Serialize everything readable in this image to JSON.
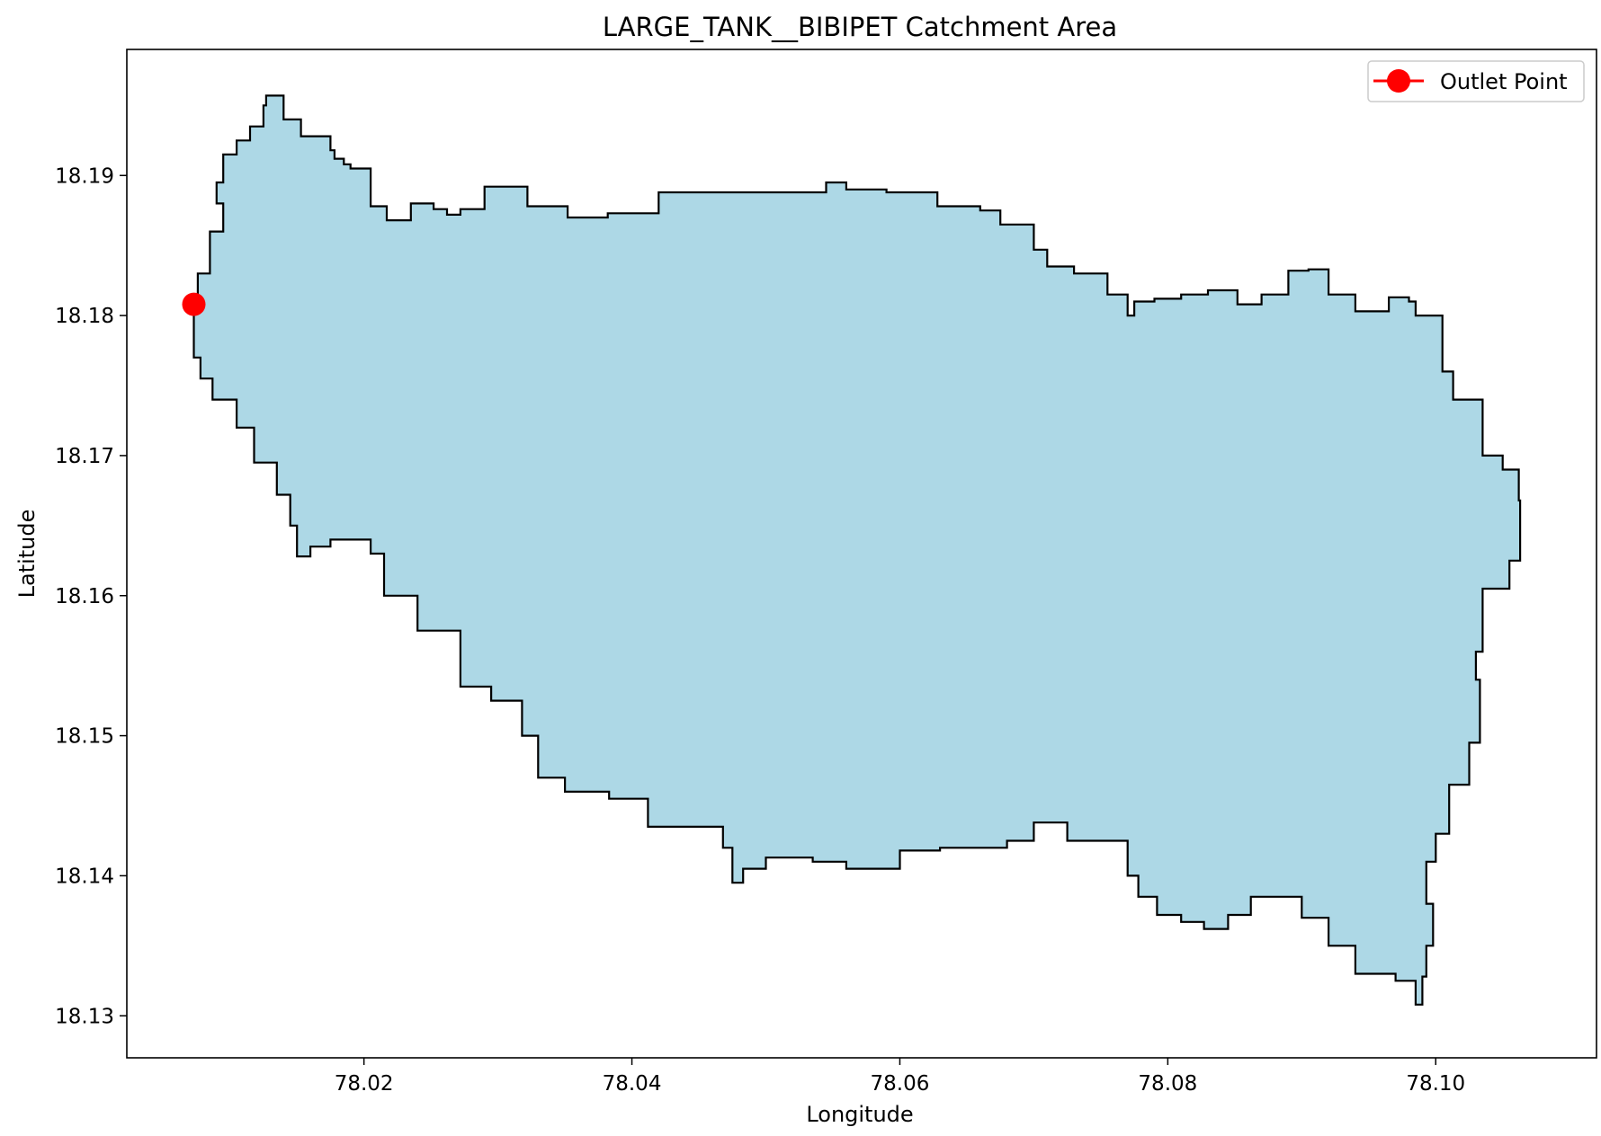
{
  "chart_data": {
    "type": "area",
    "title": "LARGE_TANK__BIBIPET Catchment Area",
    "xlabel": "Longitude",
    "ylabel": "Latitude",
    "xlim": [
      78.0023,
      78.112
    ],
    "ylim": [
      18.127,
      18.199
    ],
    "x_ticks": [
      78.02,
      78.04,
      78.06,
      78.08,
      78.1
    ],
    "x_tick_labels": [
      "78.02",
      "78.04",
      "78.06",
      "78.08",
      "78.10"
    ],
    "y_ticks": [
      18.13,
      18.14,
      18.15,
      18.16,
      18.17,
      18.18,
      18.19
    ],
    "y_tick_labels": [
      "18.13",
      "18.14",
      "18.15",
      "18.16",
      "18.17",
      "18.18",
      "18.19"
    ],
    "grid": false,
    "legend": {
      "position": "top-right",
      "entries": [
        "Outlet Point"
      ]
    },
    "colors": {
      "fill": "#add8e6",
      "outline": "#000000",
      "outlet": "#ff0000"
    },
    "series": [
      {
        "name": "",
        "kind": "polygon",
        "lon": [
          78.0073,
          78.0076,
          78.0085,
          78.0085,
          78.0095,
          78.009,
          78.0095,
          78.0105,
          78.0115,
          78.0125,
          78.0127,
          78.014,
          78.015,
          78.0153,
          78.0175,
          78.0178,
          78.0185,
          78.019,
          78.0205,
          78.0213,
          78.0217,
          78.0235,
          78.0252,
          78.0262,
          78.0272,
          78.029,
          78.0322,
          78.0352,
          78.0382,
          78.042,
          78.0475,
          78.0522,
          78.0545,
          78.056,
          78.059,
          78.0618,
          78.0628,
          78.065,
          78.066,
          78.0675,
          78.07,
          78.071,
          78.073,
          78.0755,
          78.077,
          78.0775,
          78.079,
          78.081,
          78.083,
          78.0852,
          78.087,
          78.089,
          78.0905,
          78.092,
          78.094,
          78.0965,
          78.098,
          78.0985,
          78.1005,
          78.1013,
          78.1035,
          78.105,
          78.1062,
          78.1063,
          78.1055,
          78.1035,
          78.103,
          78.1033,
          78.1025,
          78.101,
          78.1,
          78.0993,
          78.0998,
          78.0993,
          78.099,
          78.0985,
          78.097,
          78.094,
          78.092,
          78.09,
          78.0885,
          78.0862,
          78.0845,
          78.0827,
          78.081,
          78.0792,
          78.0778,
          78.077,
          78.075,
          78.0725,
          78.07,
          78.068,
          78.063,
          78.06,
          78.056,
          78.0535,
          78.05,
          78.0483,
          78.0475,
          78.0468,
          78.045,
          78.0412,
          78.0383,
          78.035,
          78.033,
          78.0318,
          78.0295,
          78.0272,
          78.024,
          78.0215,
          78.0205,
          78.0185,
          78.0175,
          78.016,
          78.015,
          78.0145,
          78.0135,
          78.0118,
          78.0105,
          78.0087,
          78.0078,
          78.0073
        ],
        "lat": [
          18.1808,
          18.183,
          18.184,
          18.186,
          18.188,
          18.1895,
          18.1915,
          18.1925,
          18.1935,
          18.195,
          18.1957,
          18.194,
          18.194,
          18.1928,
          18.1918,
          18.1912,
          18.1908,
          18.1905,
          18.1878,
          18.1878,
          18.1868,
          18.188,
          18.1876,
          18.1872,
          18.1876,
          18.1892,
          18.1878,
          18.187,
          18.1873,
          18.1888,
          18.1888,
          18.1888,
          18.1895,
          18.189,
          18.1888,
          18.1888,
          18.1878,
          18.1878,
          18.1875,
          18.1865,
          18.1847,
          18.1835,
          18.183,
          18.1815,
          18.18,
          18.181,
          18.1812,
          18.1815,
          18.1818,
          18.1808,
          18.1815,
          18.1832,
          18.1833,
          18.1815,
          18.1803,
          18.1813,
          18.181,
          18.18,
          18.176,
          18.174,
          18.17,
          18.169,
          18.1668,
          18.1625,
          18.1605,
          18.156,
          18.154,
          18.1495,
          18.1465,
          18.143,
          18.141,
          18.138,
          18.135,
          18.1328,
          18.1308,
          18.1325,
          18.133,
          18.135,
          18.137,
          18.1385,
          18.1385,
          18.1372,
          18.1362,
          18.1367,
          18.1372,
          18.1385,
          18.14,
          18.1425,
          18.1425,
          18.1438,
          18.1425,
          18.142,
          18.1418,
          18.1405,
          18.141,
          18.1413,
          18.1405,
          18.1395,
          18.142,
          18.1435,
          18.1435,
          18.1455,
          18.146,
          18.147,
          18.15,
          18.1525,
          18.1535,
          18.1575,
          18.16,
          18.163,
          18.164,
          18.164,
          18.1635,
          18.1628,
          18.165,
          18.1672,
          18.1695,
          18.172,
          18.174,
          18.1755,
          18.177,
          18.1808
        ]
      },
      {
        "name": "Outlet Point",
        "kind": "point",
        "lon": [
          78.0073
        ],
        "lat": [
          18.1808
        ]
      }
    ]
  }
}
